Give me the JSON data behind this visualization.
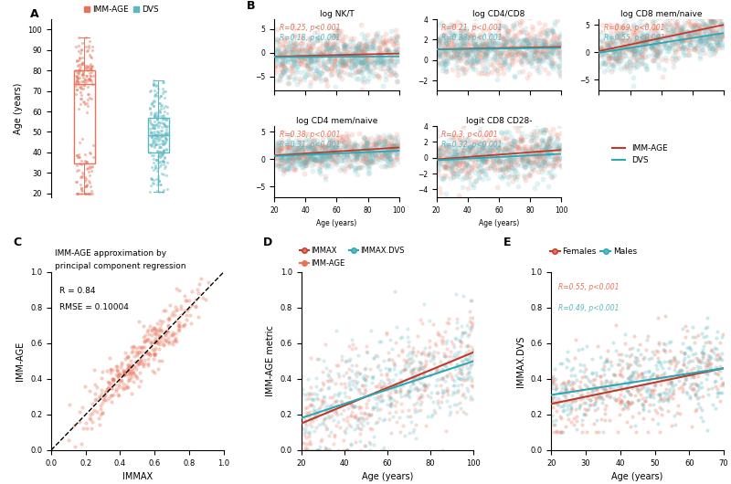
{
  "red_color": "#E8735A",
  "blue_color": "#5BB8C1",
  "red_dark": "#C0392B",
  "blue_dark": "#2AA8B5",
  "panel_A": {
    "ylabel": "Age (years)",
    "ylim": [
      18,
      105
    ],
    "legend_imm": "IMM-AGE",
    "legend_dvs": "DVS"
  },
  "panel_B": {
    "subplots": [
      {
        "title": "log NK/T",
        "r_imm": "R=0.25, p<0.001",
        "r_dvs": "R=0.18, p<0.001",
        "slope_imm": 0.008,
        "intercept_imm": -1.2,
        "slope_dvs": 0.002,
        "intercept_dvs": -1.5,
        "ymid": -1.0,
        "yscatter": 2.5,
        "ylim": [
          -8,
          7
        ]
      },
      {
        "title": "log CD4/CD8",
        "r_imm": "R=0.21, p<0.001",
        "r_dvs": "R=0.38, p<0.001",
        "slope_imm": 0.003,
        "intercept_imm": 0.9,
        "slope_dvs": 0.002,
        "intercept_dvs": 0.8,
        "ymid": 1.0,
        "yscatter": 1.2,
        "ylim": [
          -3,
          4
        ]
      },
      {
        "title": "log CD8 mem/naive",
        "r_imm": "R=0.69, p<0.001",
        "r_dvs": "R=0.55, p<0.001",
        "slope_imm": 0.06,
        "intercept_imm": -4.5,
        "slope_dvs": 0.045,
        "intercept_dvs": -3.8,
        "ymid": -1.0,
        "yscatter": 2.0,
        "ylim": [
          -7,
          6
        ]
      },
      {
        "title": "log CD4 mem/naive",
        "r_imm": "R=0.38, p<0.001",
        "r_dvs": "R=0.31, p<0.001",
        "slope_imm": 0.018,
        "intercept_imm": -0.8,
        "slope_dvs": 0.012,
        "intercept_dvs": -0.6,
        "ymid": 0.3,
        "yscatter": 1.5,
        "ylim": [
          -7,
          6
        ]
      },
      {
        "title": "logit CD8 CD28-",
        "r_imm": "R=0.3, p<0.001",
        "r_dvs": "R=0.32, p<0.001",
        "slope_imm": 0.015,
        "intercept_imm": -1.5,
        "slope_dvs": 0.01,
        "intercept_dvs": -1.3,
        "ymid": -0.5,
        "yscatter": 1.5,
        "ylim": [
          -5,
          4
        ]
      }
    ],
    "xlabel": "Age (years)",
    "xlim": [
      20,
      100
    ]
  },
  "panel_C": {
    "title1": "IMM-AGE approximation by",
    "title2": "principal component regression",
    "r_text": "R = 0.84",
    "rmse_text": "RMSE = 0.10004",
    "xlabel": "IMMAX",
    "ylabel": "IMM-AGE",
    "xlim": [
      0.0,
      1.0
    ],
    "ylim": [
      0.0,
      1.0
    ]
  },
  "panel_D": {
    "legend1": "IMMAX",
    "legend2": "IMM-AGE",
    "legend3": "IMMAX.DVS",
    "xlabel": "Age (years)",
    "ylabel": "IMM-AGE metric",
    "xlim": [
      20,
      100
    ],
    "ylim": [
      0.0,
      1.0
    ],
    "slope_imm": 0.005,
    "intercept_imm": 0.05,
    "slope_dvs": 0.004,
    "intercept_dvs": 0.1
  },
  "panel_E": {
    "legend1": "Females",
    "legend2": "Males",
    "r_female": "R=0.55, p<0.001",
    "r_male": "R=0.49, p<0.001",
    "xlabel": "Age (years)",
    "ylabel": "IMMAX.DVS",
    "xlim": [
      20,
      70
    ],
    "ylim": [
      0.0,
      1.0
    ],
    "slope_female": 0.004,
    "intercept_female": 0.18,
    "slope_male": 0.003,
    "intercept_male": 0.25
  }
}
